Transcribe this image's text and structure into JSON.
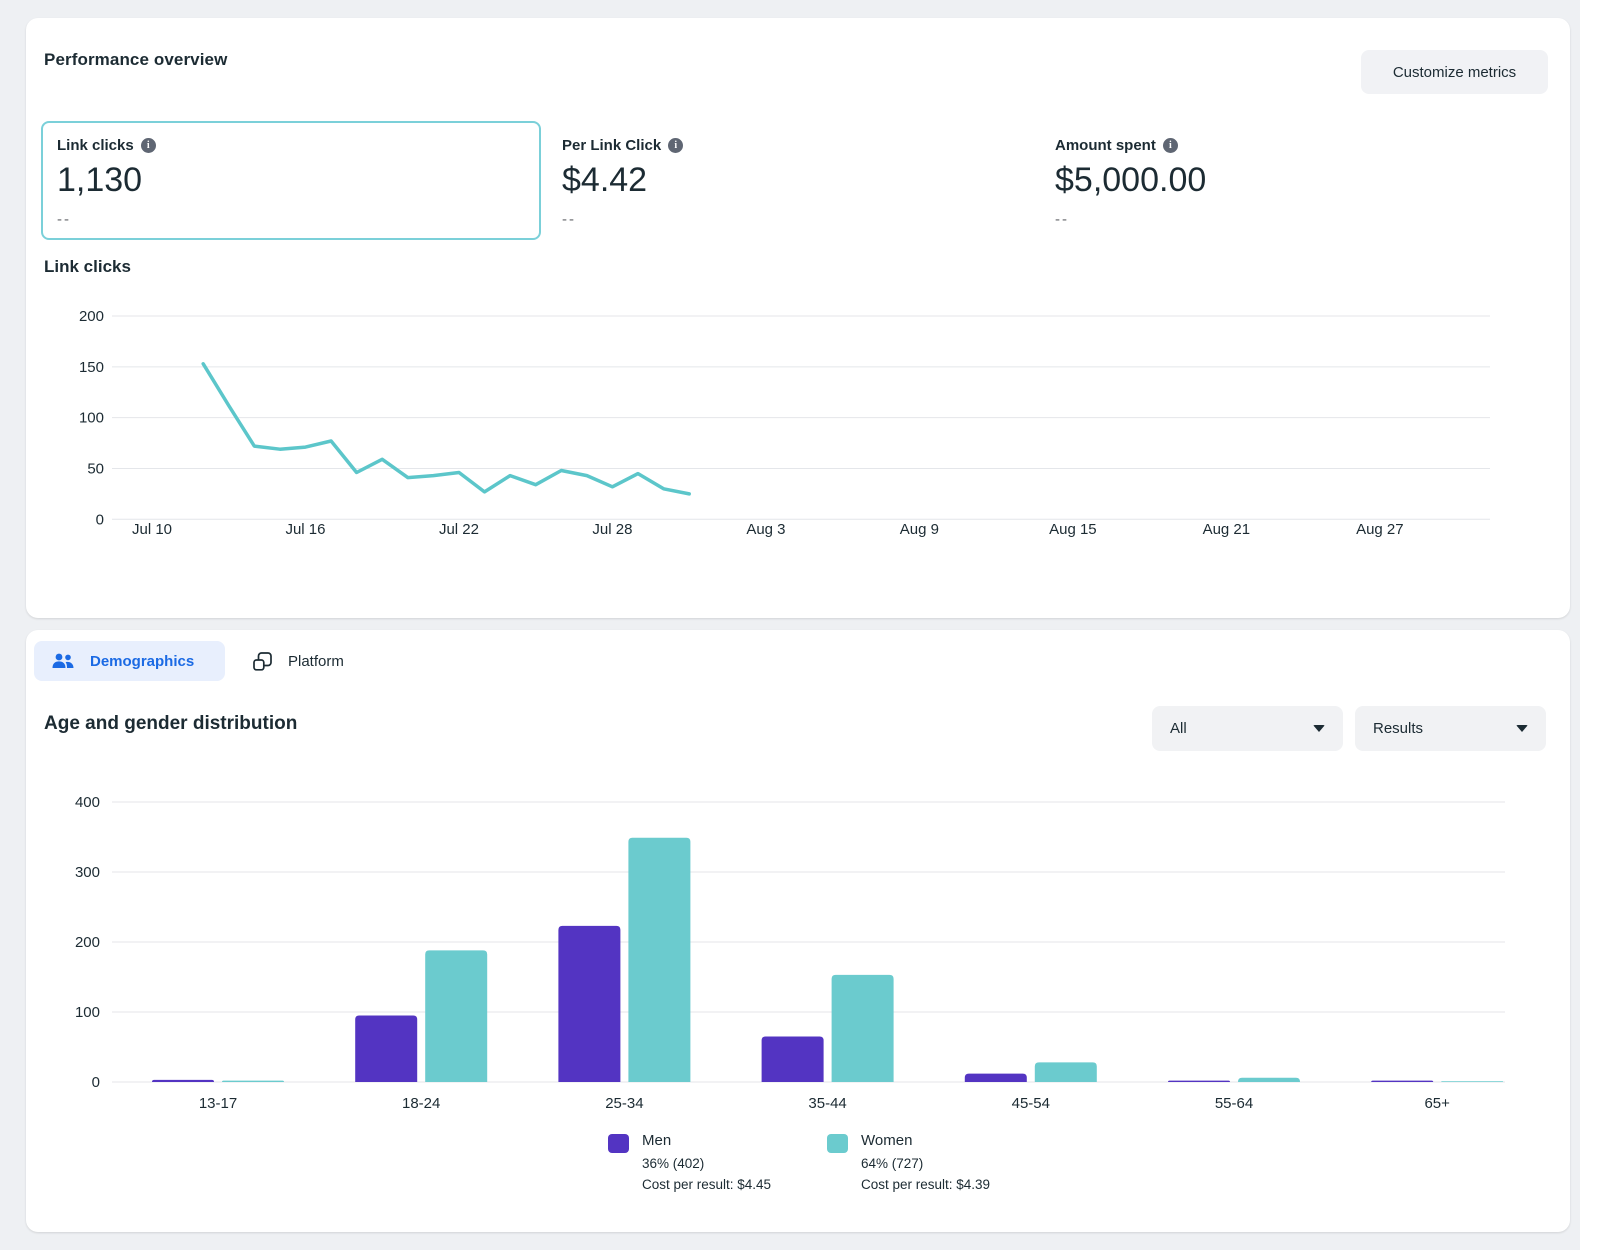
{
  "colors": {
    "accent_teal": "#5cc6ca",
    "bar_teal": "#6bcbce",
    "bar_purple": "#5334c2",
    "selected_card_border": "#7bd0d9",
    "active_tab_blue": "#1b6ae4",
    "gridline": "#e4e6ea",
    "text": "#1c2b33",
    "muted_text": "#65676b"
  },
  "icons": {
    "metric_info": "info-icon",
    "demographics_tab": "people-icon",
    "platform_tab": "overlapping-squares-icon",
    "dropdown_caret": "caret-down-icon"
  },
  "performance": {
    "title": "Performance overview",
    "customize_button": "Customize metrics",
    "metrics": [
      {
        "label": "Link clicks",
        "value": "1,130",
        "delta": "--",
        "selected": true
      },
      {
        "label": "Per Link Click",
        "value": "$4.42",
        "delta": "--",
        "selected": false
      },
      {
        "label": "Amount spent",
        "value": "$5,000.00",
        "delta": "--",
        "selected": false
      }
    ]
  },
  "breakdown": {
    "tabs": [
      {
        "label": "Demographics",
        "active": true
      },
      {
        "label": "Platform",
        "active": false
      }
    ],
    "title": "Age and gender distribution",
    "filters": [
      {
        "value": "All"
      },
      {
        "value": "Results"
      }
    ],
    "legend": [
      {
        "name": "Men",
        "share": "36% (402)",
        "cost": "Cost per result: $4.45",
        "color": "#5334c2"
      },
      {
        "name": "Women",
        "share": "64% (727)",
        "cost": "Cost per result: $4.39",
        "color": "#6bcbce"
      }
    ]
  },
  "chart_data": [
    {
      "type": "line",
      "title": "Link clicks",
      "series_name": "Link clicks",
      "line_color": "#5cc6ca",
      "grid": true,
      "ylim": [
        0,
        200
      ],
      "y_ticks": [
        0,
        50,
        100,
        150,
        200
      ],
      "x_ticks": [
        "Jul 10",
        "Jul 16",
        "Jul 22",
        "Jul 28",
        "Aug 3",
        "Aug 9",
        "Aug 15",
        "Aug 21",
        "Aug 27"
      ],
      "points": [
        {
          "date": "Jul 12",
          "value": 153
        },
        {
          "date": "Jul 13",
          "value": 112
        },
        {
          "date": "Jul 14",
          "value": 72
        },
        {
          "date": "Jul 15",
          "value": 69
        },
        {
          "date": "Jul 16",
          "value": 71
        },
        {
          "date": "Jul 17",
          "value": 77
        },
        {
          "date": "Jul 18",
          "value": 46
        },
        {
          "date": "Jul 19",
          "value": 59
        },
        {
          "date": "Jul 20",
          "value": 41
        },
        {
          "date": "Jul 21",
          "value": 43
        },
        {
          "date": "Jul 22",
          "value": 46
        },
        {
          "date": "Jul 23",
          "value": 27
        },
        {
          "date": "Jul 24",
          "value": 43
        },
        {
          "date": "Jul 25",
          "value": 34
        },
        {
          "date": "Jul 26",
          "value": 48
        },
        {
          "date": "Jul 27",
          "value": 43
        },
        {
          "date": "Jul 28",
          "value": 32
        },
        {
          "date": "Jul 29",
          "value": 45
        },
        {
          "date": "Jul 30",
          "value": 30
        },
        {
          "date": "Jul 31",
          "value": 25
        }
      ]
    },
    {
      "type": "bar",
      "title": "Age and gender distribution",
      "grid": true,
      "ylim": [
        0,
        400
      ],
      "y_ticks": [
        0,
        100,
        200,
        300,
        400
      ],
      "categories": [
        "13-17",
        "18-24",
        "25-34",
        "35-44",
        "45-54",
        "55-64",
        "65+"
      ],
      "series": [
        {
          "name": "Men",
          "color": "#5334c2",
          "values": [
            3,
            95,
            223,
            65,
            12,
            2,
            2
          ]
        },
        {
          "name": "Women",
          "color": "#6bcbce",
          "values": [
            2,
            188,
            349,
            153,
            28,
            6,
            1
          ]
        }
      ],
      "legend_position": "bottom"
    }
  ]
}
